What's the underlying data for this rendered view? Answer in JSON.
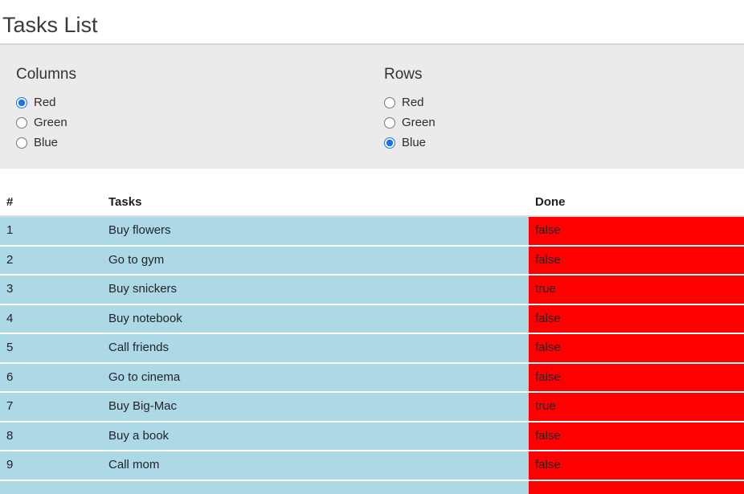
{
  "page": {
    "title": "Tasks List"
  },
  "controls": {
    "groups": [
      {
        "id": "columns",
        "label": "Columns",
        "selected_value": "Red",
        "options": [
          {
            "label": "Red",
            "selected": true
          },
          {
            "label": "Green",
            "selected": false
          },
          {
            "label": "Blue",
            "selected": false
          }
        ]
      },
      {
        "id": "rows",
        "label": "Rows",
        "selected_value": "Blue",
        "options": [
          {
            "label": "Red",
            "selected": false
          },
          {
            "label": "Green",
            "selected": false
          },
          {
            "label": "Blue",
            "selected": true
          }
        ]
      }
    ]
  },
  "table": {
    "headers": [
      "#",
      "Tasks",
      "Done"
    ],
    "rows": [
      {
        "num": "1",
        "task": "Buy flowers",
        "done": "false"
      },
      {
        "num": "2",
        "task": "Go to gym",
        "done": "false"
      },
      {
        "num": "3",
        "task": "Buy snickers",
        "done": "true"
      },
      {
        "num": "4",
        "task": "Buy notebook",
        "done": "false"
      },
      {
        "num": "5",
        "task": "Call friends",
        "done": "false"
      },
      {
        "num": "6",
        "task": "Go to cinema",
        "done": "false"
      },
      {
        "num": "7",
        "task": "Buy Big-Mac",
        "done": "true"
      },
      {
        "num": "8",
        "task": "Buy a book",
        "done": "false"
      },
      {
        "num": "9",
        "task": "Call mom",
        "done": "false"
      },
      {
        "num": "",
        "task": "",
        "done": ""
      }
    ]
  },
  "colors": {
    "row_background": "#add8e6",
    "done_column_background": "#ff0000",
    "radio_accent": "#1a73e8",
    "panel_background": "#ebebeb"
  }
}
